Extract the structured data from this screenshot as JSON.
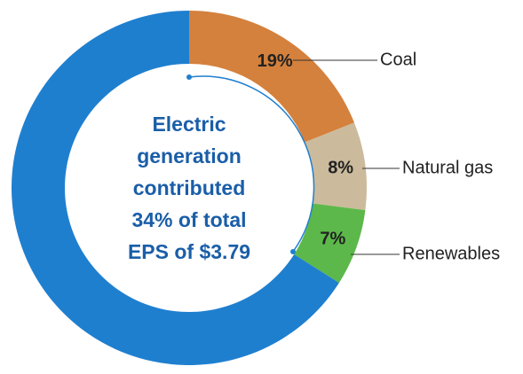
{
  "chart_data": {
    "type": "donut",
    "annotation": [
      "Electric",
      "generation",
      "contributed",
      "34% of total",
      "EPS of $3.79"
    ],
    "categories": [
      "Coal",
      "Natural gas",
      "Renewables",
      null
    ],
    "values": [
      19,
      8,
      7,
      66
    ],
    "value_labels": [
      "19%",
      "8%",
      "7%",
      null
    ],
    "colors": [
      "#d4813d",
      "#cbbb9c",
      "#5cb84a",
      "#1f7fcf"
    ]
  }
}
